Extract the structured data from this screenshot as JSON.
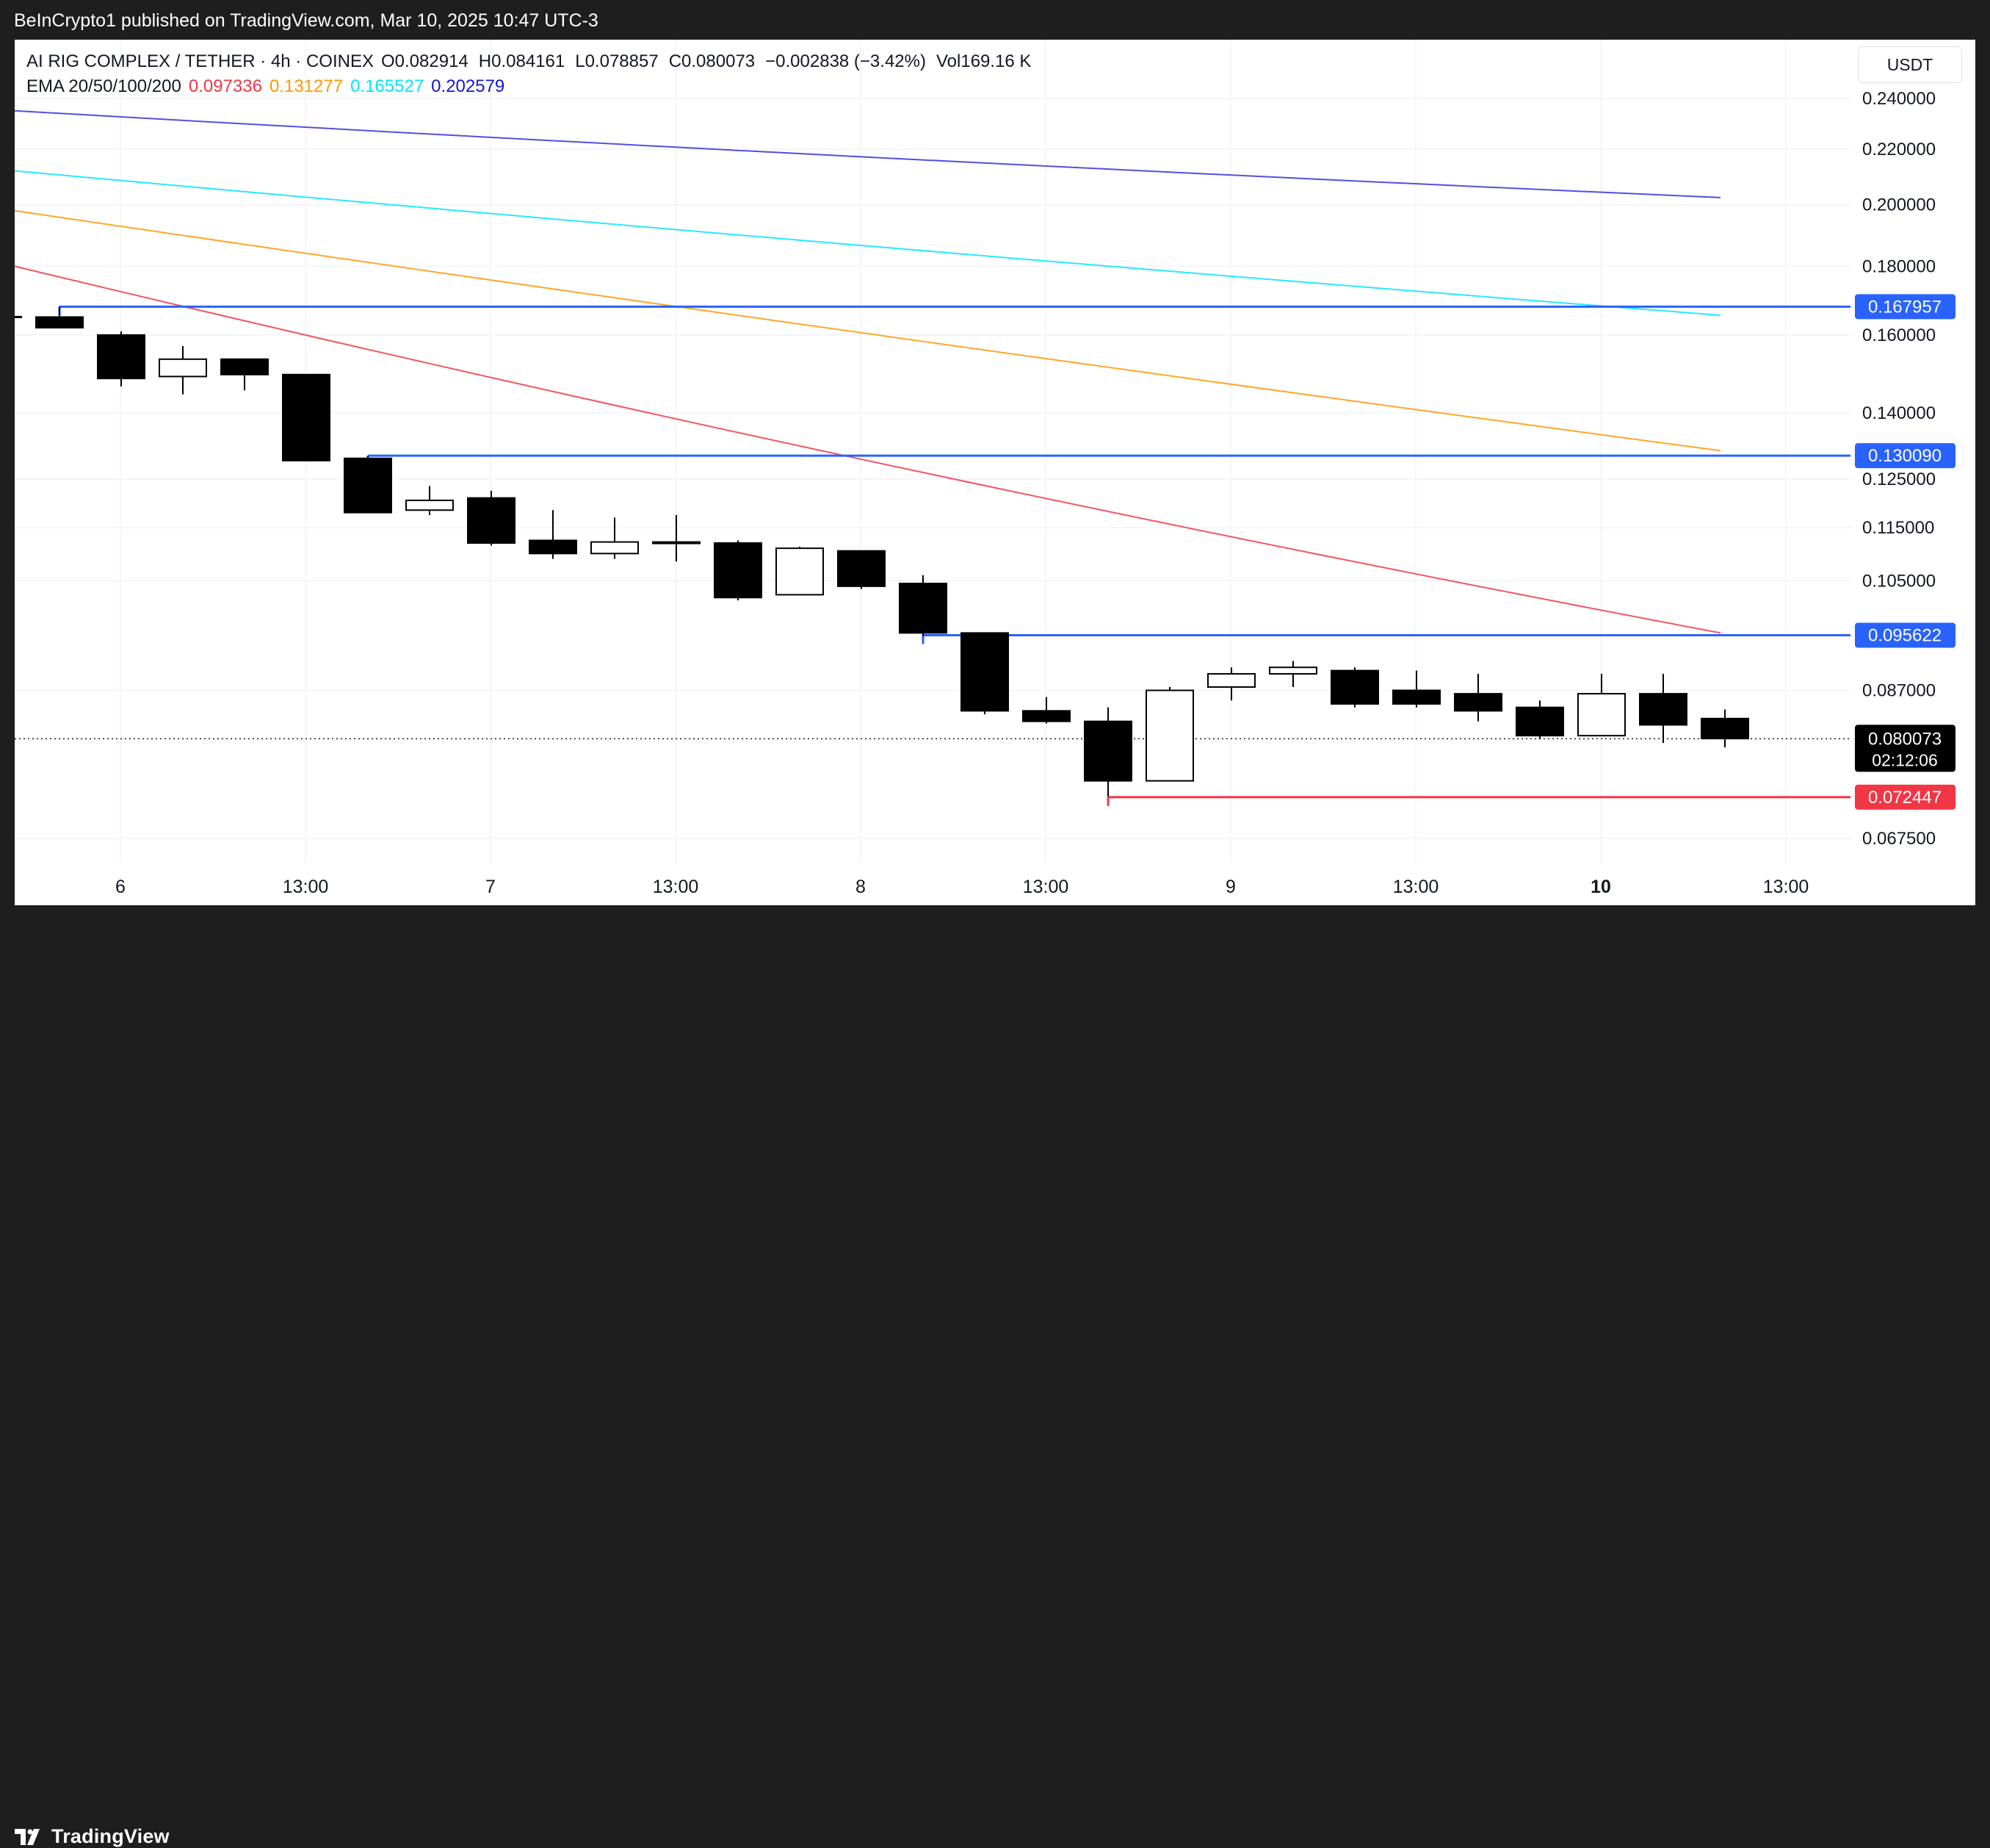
{
  "header": {
    "publish_text": "BeInCrypto1 published on TradingView.com, Mar 10, 2025 10:47 UTC-3"
  },
  "footer": {
    "brand": "TradingView"
  },
  "legend": {
    "symbol": "AI RIG COMPLEX / TETHER · 4h · COINEX",
    "o_label": "O",
    "o": "0.082914",
    "h_label": "H",
    "h": "0.084161",
    "l_label": "L",
    "l": "0.078857",
    "c_label": "C",
    "c": "0.080073",
    "change": "−0.002838 (−3.42%)",
    "vol_label": "Vol",
    "vol": "169.16 K",
    "ema_label": "EMA 20/50/100/200",
    "ema": [
      {
        "value": "0.097336",
        "color": "#f23645"
      },
      {
        "value": "0.131277",
        "color": "#ff9800"
      },
      {
        "value": "0.165527",
        "color": "#00e5ff"
      },
      {
        "value": "0.202579",
        "color": "#1515d6"
      }
    ]
  },
  "currency": "USDT",
  "chart_data": {
    "type": "candlestick",
    "price_axis": {
      "ticks": [
        "0.240000",
        "0.220000",
        "0.200000",
        "0.180000",
        "0.160000",
        "0.140000",
        "0.125000",
        "0.115000",
        "0.105000",
        "0.087000",
        "0.067500"
      ],
      "scale": "log"
    },
    "time_axis": {
      "ticks": [
        {
          "label": "6",
          "bold": false
        },
        {
          "label": "13:00",
          "bold": false
        },
        {
          "label": "7",
          "bold": false
        },
        {
          "label": "13:00",
          "bold": false
        },
        {
          "label": "8",
          "bold": false
        },
        {
          "label": "13:00",
          "bold": false
        },
        {
          "label": "9",
          "bold": false
        },
        {
          "label": "13:00",
          "bold": false
        },
        {
          "label": "10",
          "bold": true
        },
        {
          "label": "13:00",
          "bold": false
        }
      ]
    },
    "candles": [
      {
        "o": 0.165,
        "h": 0.168,
        "l": 0.162,
        "c": 0.162
      },
      {
        "o": 0.16,
        "h": 0.161,
        "l": 0.1465,
        "c": 0.1485
      },
      {
        "o": 0.149,
        "h": 0.157,
        "l": 0.1445,
        "c": 0.1535
      },
      {
        "o": 0.1535,
        "h": 0.1535,
        "l": 0.1455,
        "c": 0.1495
      },
      {
        "o": 0.1495,
        "h": 0.1495,
        "l": 0.129,
        "c": 0.129
      },
      {
        "o": 0.1295,
        "h": 0.13,
        "l": 0.118,
        "c": 0.118
      },
      {
        "o": 0.1185,
        "h": 0.1235,
        "l": 0.1175,
        "c": 0.1205
      },
      {
        "o": 0.121,
        "h": 0.1225,
        "l": 0.1115,
        "c": 0.112
      },
      {
        "o": 0.1125,
        "h": 0.1185,
        "l": 0.109,
        "c": 0.11
      },
      {
        "o": 0.11,
        "h": 0.117,
        "l": 0.109,
        "c": 0.1122
      },
      {
        "o": 0.1122,
        "h": 0.1175,
        "l": 0.1085,
        "c": 0.1122
      },
      {
        "o": 0.112,
        "h": 0.1125,
        "l": 0.1015,
        "c": 0.102
      },
      {
        "o": 0.1025,
        "h": 0.1113,
        "l": 0.1025,
        "c": 0.111
      },
      {
        "o": 0.1105,
        "h": 0.1105,
        "l": 0.1035,
        "c": 0.104
      },
      {
        "o": 0.1045,
        "h": 0.106,
        "l": 0.0955,
        "c": 0.096
      },
      {
        "o": 0.096,
        "h": 0.096,
        "l": 0.0835,
        "c": 0.084
      },
      {
        "o": 0.084,
        "h": 0.086,
        "l": 0.0822,
        "c": 0.0825
      },
      {
        "o": 0.0825,
        "h": 0.0845,
        "l": 0.0725,
        "c": 0.0745
      },
      {
        "o": 0.0745,
        "h": 0.0875,
        "l": 0.0745,
        "c": 0.087
      },
      {
        "o": 0.0875,
        "h": 0.0905,
        "l": 0.0855,
        "c": 0.0895
      },
      {
        "o": 0.0895,
        "h": 0.0915,
        "l": 0.0875,
        "c": 0.0905
      },
      {
        "o": 0.09,
        "h": 0.0905,
        "l": 0.0845,
        "c": 0.085
      },
      {
        "o": 0.087,
        "h": 0.09,
        "l": 0.0845,
        "c": 0.085
      },
      {
        "o": 0.0865,
        "h": 0.0895,
        "l": 0.0825,
        "c": 0.084
      },
      {
        "o": 0.0845,
        "h": 0.0855,
        "l": 0.08,
        "c": 0.0805
      },
      {
        "o": 0.0805,
        "h": 0.0895,
        "l": 0.0805,
        "c": 0.0865
      },
      {
        "o": 0.0865,
        "h": 0.0895,
        "l": 0.0795,
        "c": 0.082
      },
      {
        "o": 0.0829,
        "h": 0.0842,
        "l": 0.0789,
        "c": 0.0801
      }
    ],
    "emas": [
      {
        "name": "EMA 20",
        "color": "#f23645",
        "values": [
          0.18,
          0.096
        ]
      },
      {
        "name": "EMA 50",
        "color": "#ff9800",
        "values": [
          0.198,
          0.1312
        ]
      },
      {
        "name": "EMA 100",
        "color": "#00e5ff",
        "values": [
          0.212,
          0.1655
        ]
      },
      {
        "name": "EMA 200",
        "color": "#1515d6",
        "values": [
          0.235,
          0.2025
        ]
      }
    ],
    "levels": [
      {
        "value": 0.167957,
        "label": "0.167957",
        "color": "#2962ff",
        "from_candle": 0
      },
      {
        "value": 0.13009,
        "label": "0.130090",
        "color": "#2962ff",
        "from_candle": 5
      },
      {
        "value": 0.095622,
        "label": "0.095622",
        "color": "#2962ff",
        "from_candle": 14
      },
      {
        "value": 0.072447,
        "label": "0.072447",
        "color": "#f23645",
        "from_candle": 17
      }
    ],
    "last_price": {
      "value": 0.080073,
      "label": "0.080073",
      "countdown": "02:12:06"
    }
  }
}
